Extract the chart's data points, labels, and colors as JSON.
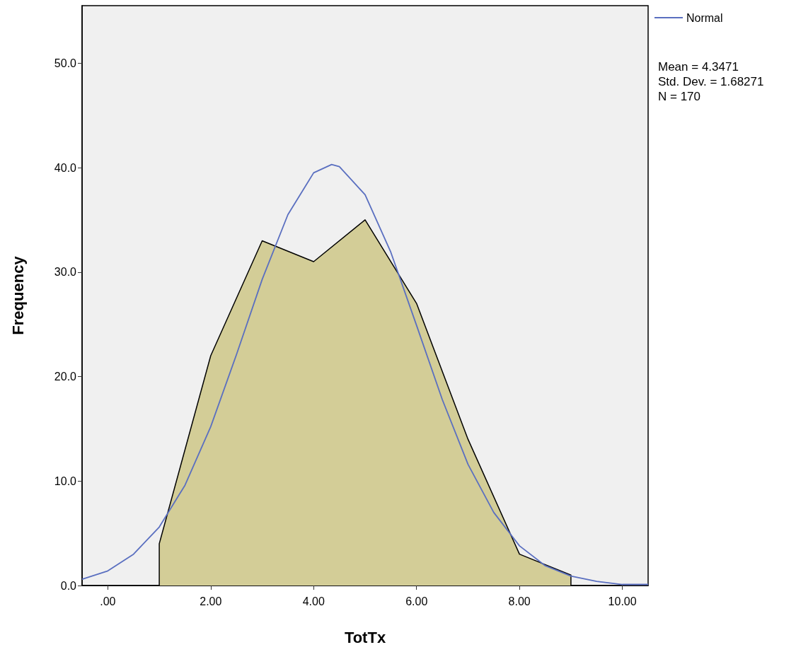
{
  "chart_data": {
    "type": "area",
    "xlabel": "TotTx",
    "ylabel": "Frequency",
    "series": [
      {
        "color": "#d3cd97",
        "x": [
          1,
          1,
          2,
          3,
          4,
          5,
          6,
          7,
          8,
          9,
          9
        ],
        "values": [
          0,
          4,
          22,
          33,
          31,
          35,
          27,
          14,
          3,
          1,
          0
        ]
      },
      {
        "type": "line",
        "name": "Normal",
        "color": "#5a6fc0",
        "x": [
          -0.5,
          0,
          0.5,
          1,
          1.5,
          2,
          2.5,
          3,
          3.5,
          4,
          4.35,
          4.5,
          5,
          5.5,
          6,
          6.5,
          7,
          7.5,
          8,
          8.5,
          9,
          9.5,
          10,
          10.5
        ],
        "values": [
          0.6,
          1.4,
          3.0,
          5.6,
          9.6,
          15.2,
          22.1,
          29.3,
          35.5,
          39.5,
          40.3,
          40.1,
          37.4,
          31.9,
          24.9,
          17.8,
          11.6,
          7.0,
          3.8,
          1.9,
          0.9,
          0.4,
          0.1,
          0.1
        ]
      }
    ],
    "xlim": [
      -0.5,
      10.5
    ],
    "xticks": [
      {
        "value": 0,
        "label": ".00"
      },
      {
        "value": 2,
        "label": "2.00"
      },
      {
        "value": 4,
        "label": "4.00"
      },
      {
        "value": 6,
        "label": "6.00"
      },
      {
        "value": 8,
        "label": "8.00"
      },
      {
        "value": 10,
        "label": "10.00"
      }
    ],
    "ylim": [
      0,
      55.5
    ],
    "yticks": [
      {
        "value": 0,
        "label": "0.0"
      },
      {
        "value": 10,
        "label": "10.0"
      },
      {
        "value": 20,
        "label": "20.0"
      },
      {
        "value": 30,
        "label": "30.0"
      },
      {
        "value": 40,
        "label": "40.0"
      },
      {
        "value": 50,
        "label": "50.0"
      }
    ],
    "grid": false,
    "legend": "top right",
    "marker": "none",
    "line_style": "solid",
    "annotations": [
      "Mean = 4.3471",
      "Std. Dev. = 1.68271",
      "N = 170"
    ]
  }
}
